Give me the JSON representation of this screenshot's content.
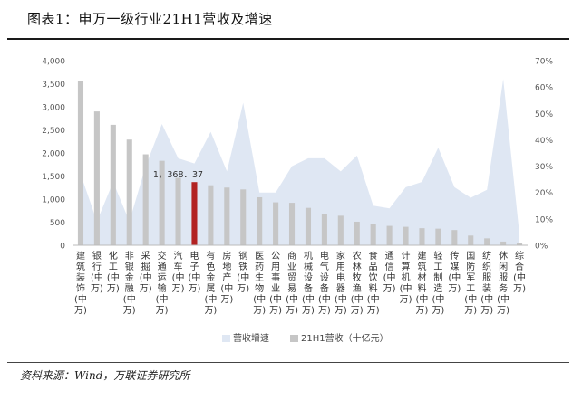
{
  "title": "图表1：申万一级行业21H1营收及增速",
  "source": "资料来源：Wind，万联证券研究所",
  "chart_data": {
    "type": "bar",
    "categories": [
      [
        "建",
        "筑",
        "装",
        "饰",
        "(中",
        "万)"
      ],
      [
        "银",
        "行",
        "(中",
        "万)"
      ],
      [
        "化",
        "工",
        "(中",
        "万)"
      ],
      [
        "非",
        "银",
        "金",
        "融",
        "(中",
        "万)"
      ],
      [
        "采",
        "掘",
        "(中",
        "万)"
      ],
      [
        "交",
        "通",
        "运",
        "输",
        "(中",
        "万)"
      ],
      [
        "汽",
        "车",
        "(中",
        "万)"
      ],
      [
        "电",
        "子",
        "(中",
        "万)"
      ],
      [
        "有",
        "色",
        "金",
        "属",
        "(中",
        "万)"
      ],
      [
        "房",
        "地",
        "产",
        "(中",
        "万)"
      ],
      [
        "钢",
        "铁",
        "(中",
        "万)"
      ],
      [
        "医",
        "药",
        "生",
        "物",
        "(中",
        "万)"
      ],
      [
        "公",
        "用",
        "事",
        "业",
        "(中",
        "万)"
      ],
      [
        "商",
        "业",
        "贸",
        "易",
        "(中",
        "万)"
      ],
      [
        "机",
        "械",
        "设",
        "备",
        "(中",
        "万)"
      ],
      [
        "电",
        "气",
        "设",
        "备",
        "(中",
        "万)"
      ],
      [
        "家",
        "用",
        "电",
        "器",
        "(中",
        "万)"
      ],
      [
        "农",
        "林",
        "牧",
        "渔",
        "(中",
        "万)"
      ],
      [
        "食",
        "品",
        "饮",
        "料",
        "(中",
        "万)"
      ],
      [
        "通",
        "信",
        "(中",
        "万)"
      ],
      [
        "计",
        "算",
        "机",
        "(中",
        "万)"
      ],
      [
        "建",
        "筑",
        "材",
        "料",
        "(中",
        "万)"
      ],
      [
        "轻",
        "工",
        "制",
        "造",
        "(中",
        "万)"
      ],
      [
        "传",
        "媒",
        "(中",
        "万)"
      ],
      [
        "国",
        "防",
        "军",
        "工",
        "(中",
        "万)"
      ],
      [
        "纺",
        "织",
        "服",
        "装",
        "(中",
        "万)"
      ],
      [
        "休",
        "闲",
        "服",
        "务",
        "(中",
        "万)"
      ],
      [
        "综",
        "合",
        "(中",
        "万)"
      ]
    ],
    "series": [
      {
        "name": "营收增速",
        "type": "area",
        "axis": "right",
        "color": "#dfe7f3",
        "values": [
          0.27,
          0.09,
          0.24,
          0.09,
          0.3,
          0.46,
          0.33,
          0.31,
          0.43,
          0.28,
          0.54,
          0.2,
          0.2,
          0.3,
          0.33,
          0.33,
          0.28,
          0.34,
          0.15,
          0.14,
          0.22,
          0.24,
          0.37,
          0.22,
          0.18,
          0.21,
          0.63,
          0.04
        ]
      },
      {
        "name": "21H1营收（十亿元）",
        "type": "bar",
        "axis": "left",
        "color": "#c6c6c6",
        "highlight_color": "#b22222",
        "highlight_index": 7,
        "values": [
          3560,
          2900,
          2610,
          2290,
          1970,
          1830,
          1460,
          1368.37,
          1300,
          1250,
          1210,
          1040,
          930,
          920,
          810,
          670,
          640,
          510,
          460,
          420,
          400,
          370,
          360,
          330,
          210,
          150,
          80,
          50
        ]
      }
    ],
    "data_labels": [
      {
        "index": 7,
        "text": "1，368．37"
      }
    ],
    "left_axis": {
      "ylim": [
        0,
        4000
      ],
      "ticks": [
        "0",
        "500",
        "1,000",
        "1,500",
        "2,000",
        "2,500",
        "3,000",
        "3,500",
        "4,000"
      ],
      "tick_values": [
        0,
        500,
        1000,
        1500,
        2000,
        2500,
        3000,
        3500,
        4000
      ]
    },
    "right_axis": {
      "ylim": [
        0,
        0.7
      ],
      "ticks": [
        "0%",
        "10%",
        "20%",
        "30%",
        "40%",
        "50%",
        "60%",
        "70%"
      ],
      "tick_values": [
        0,
        0.1,
        0.2,
        0.3,
        0.4,
        0.5,
        0.6,
        0.7
      ]
    },
    "grid": false,
    "legend": "bottom",
    "legend_labels": [
      "营收增速",
      "21H1营收（十亿元）"
    ]
  }
}
